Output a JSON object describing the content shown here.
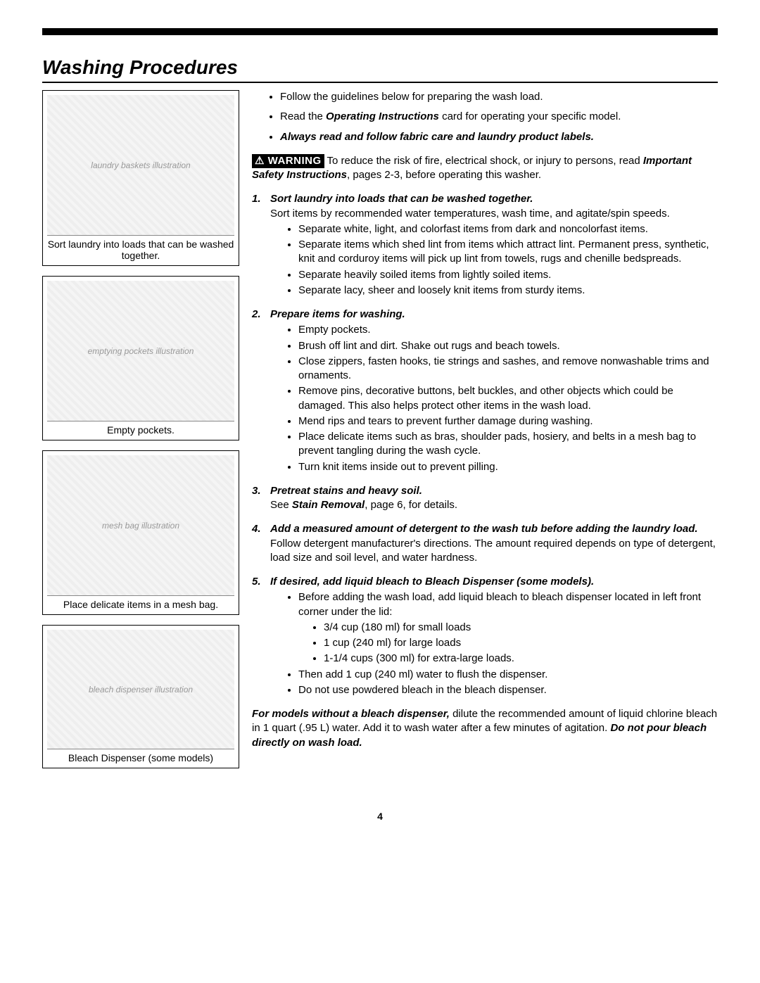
{
  "page_number": "4",
  "title": "Washing Procedures",
  "figures": [
    {
      "caption": "Sort laundry into loads that can be washed together.",
      "placeholder": "laundry baskets illustration"
    },
    {
      "caption": "Empty pockets.",
      "placeholder": "emptying pockets illustration"
    },
    {
      "caption": "Place delicate items in a mesh bag.",
      "placeholder": "mesh bag illustration"
    },
    {
      "caption": "Bleach Dispenser (some models)",
      "placeholder": "bleach dispenser illustration"
    }
  ],
  "top_bullets": {
    "b1": "Follow the guidelines below for preparing the wash load.",
    "b2_pre": "Read the ",
    "b2_bold": "Operating Instructions",
    "b2_post": " card for operating your specific model.",
    "b3": "Always read and follow fabric care and laundry product labels."
  },
  "warning": {
    "label": "WARNING",
    "text_pre": " To reduce the risk of fire, electrical shock, or injury to persons, read ",
    "text_bold": "Important Safety Instructions",
    "text_post": ", pages 2-3, before operating this washer."
  },
  "steps": {
    "s1": {
      "title": "Sort laundry into loads that can be washed together.",
      "intro": "Sort items by recommended water temperatures, wash time, and agitate/spin speeds.",
      "items": [
        "Separate white, light, and colorfast items from dark and noncolorfast items.",
        "Separate items which shed lint from items which attract lint. Permanent press, synthetic, knit and corduroy items will pick up lint from towels, rugs and chenille bedspreads.",
        "Separate heavily soiled items from lightly soiled items.",
        "Separate lacy, sheer and loosely knit items from sturdy items."
      ]
    },
    "s2": {
      "title": "Prepare items for washing.",
      "items": [
        "Empty pockets.",
        "Brush off lint and dirt. Shake out rugs and beach towels.",
        "Close zippers, fasten hooks, tie strings and sashes, and remove nonwashable trims and ornaments.",
        "Remove pins, decorative buttons, belt buckles, and other objects which could be damaged. This also helps protect other items in the wash load.",
        "Mend rips and tears to prevent further damage during washing.",
        "Place delicate items such as bras, shoulder pads, hosiery, and belts in a mesh bag to prevent tangling during the wash cycle.",
        "Turn knit items inside out to prevent pilling."
      ]
    },
    "s3": {
      "title": "Pretreat stains and heavy soil.",
      "body_pre": "See ",
      "body_bold": "Stain Removal",
      "body_post": ", page 6, for details."
    },
    "s4": {
      "title": "Add a measured amount of detergent to the wash tub before adding the laundry load.",
      "body": "Follow detergent manufacturer's directions. The amount required depends on type of detergent, load size and soil level, and water hardness."
    },
    "s5": {
      "title": "If desired, add liquid bleach to Bleach Dispenser (some models).",
      "lead": "Before adding the wash load, add liquid bleach to bleach dispenser located in left front corner under the lid:",
      "amounts": [
        "3/4 cup (180 ml) for small loads",
        "1 cup (240 ml) for large loads",
        "1-1/4 cups (300 ml) for extra-large loads."
      ],
      "tail": [
        "Then add 1 cup (240 ml) water to flush the dispenser.",
        "Do not use powdered bleach in the bleach dispenser."
      ]
    }
  },
  "footer_para": {
    "lead_bold": "For models without a bleach dispenser,",
    "mid": " dilute the recommended amount of liquid chlorine bleach in 1 quart (.95 L) water. Add it to wash water after a few minutes of agitation. ",
    "end_bold": "Do not pour bleach directly on wash load."
  }
}
